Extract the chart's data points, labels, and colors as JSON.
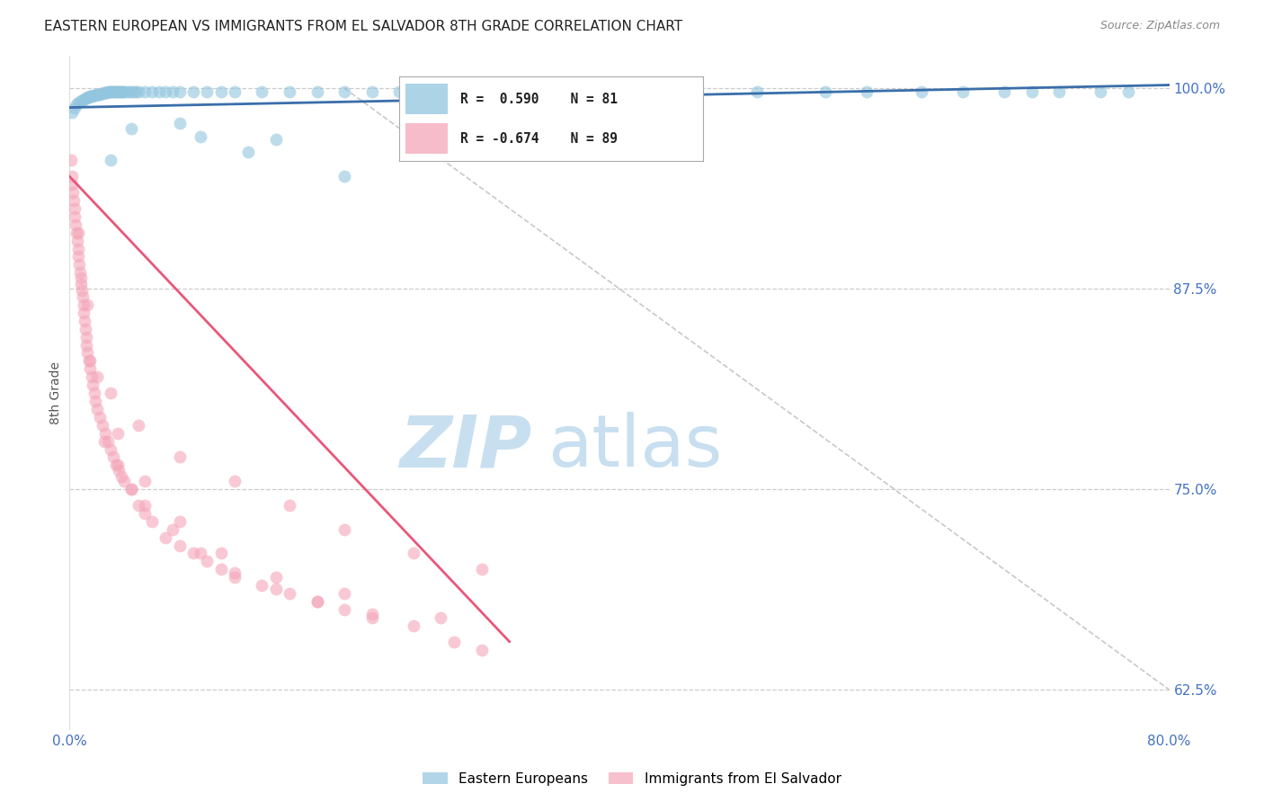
{
  "title": "EASTERN EUROPEAN VS IMMIGRANTS FROM EL SALVADOR 8TH GRADE CORRELATION CHART",
  "source": "Source: ZipAtlas.com",
  "ylabel": "8th Grade",
  "right_ytick_labels": [
    "100.0%",
    "87.5%",
    "75.0%",
    "62.5%"
  ],
  "right_yticks": [
    100.0,
    87.5,
    75.0,
    62.5
  ],
  "legend_blue_label": "Eastern Europeans",
  "legend_pink_label": "Immigrants from El Salvador",
  "legend_r_blue": "R =  0.590",
  "legend_n_blue": "N = 81",
  "legend_r_pink": "R = -0.674",
  "legend_n_pink": "N = 89",
  "blue_color": "#92c5de",
  "pink_color": "#f4a6b8",
  "blue_line_color": "#3a6eaa",
  "pink_line_color": "#e8577a",
  "diag_line_color": "#bbbbbb",
  "watermark_zip_color": "#c8dff0",
  "watermark_atlas_color": "#c8dff0",
  "blue_scatter_x": [
    0.2,
    0.4,
    0.5,
    0.6,
    0.8,
    1.0,
    1.1,
    1.2,
    1.3,
    1.4,
    1.5,
    1.6,
    1.7,
    1.8,
    1.9,
    2.0,
    2.1,
    2.2,
    2.3,
    2.4,
    2.5,
    2.6,
    2.7,
    2.8,
    2.9,
    3.0,
    3.1,
    3.2,
    3.3,
    3.4,
    3.5,
    3.6,
    3.7,
    3.8,
    3.9,
    4.0,
    4.2,
    4.4,
    4.6,
    4.8,
    5.0,
    5.5,
    6.0,
    6.5,
    7.0,
    7.5,
    8.0,
    9.0,
    10.0,
    11.0,
    12.0,
    14.0,
    16.0,
    18.0,
    20.0,
    22.0,
    24.0,
    26.0,
    30.0,
    35.0,
    40.0,
    45.0,
    50.0,
    55.0,
    58.0,
    62.0,
    65.0,
    68.0,
    70.0,
    72.0,
    75.0,
    77.0,
    4.5,
    9.5,
    15.0,
    25.0,
    3.0,
    8.0,
    13.0,
    20.0,
    30.0
  ],
  "blue_scatter_y": [
    98.5,
    98.8,
    99.0,
    99.1,
    99.2,
    99.3,
    99.35,
    99.4,
    99.42,
    99.45,
    99.5,
    99.52,
    99.54,
    99.56,
    99.58,
    99.6,
    99.62,
    99.64,
    99.66,
    99.68,
    99.7,
    99.72,
    99.74,
    99.76,
    99.78,
    99.8,
    99.8,
    99.8,
    99.8,
    99.8,
    99.8,
    99.8,
    99.8,
    99.8,
    99.8,
    99.8,
    99.8,
    99.8,
    99.8,
    99.8,
    99.8,
    99.8,
    99.8,
    99.8,
    99.8,
    99.8,
    99.8,
    99.8,
    99.8,
    99.8,
    99.8,
    99.8,
    99.8,
    99.8,
    99.8,
    99.8,
    99.8,
    99.8,
    99.8,
    99.8,
    99.8,
    99.8,
    99.8,
    99.8,
    99.8,
    99.8,
    99.8,
    99.8,
    99.8,
    99.8,
    99.8,
    99.8,
    97.5,
    97.0,
    96.8,
    98.2,
    95.5,
    97.8,
    96.0,
    94.5,
    97.2
  ],
  "pink_scatter_x": [
    0.1,
    0.15,
    0.2,
    0.25,
    0.3,
    0.35,
    0.4,
    0.45,
    0.5,
    0.55,
    0.6,
    0.65,
    0.7,
    0.75,
    0.8,
    0.85,
    0.9,
    0.95,
    1.0,
    1.05,
    1.1,
    1.15,
    1.2,
    1.25,
    1.3,
    1.4,
    1.5,
    1.6,
    1.7,
    1.8,
    1.9,
    2.0,
    2.2,
    2.4,
    2.6,
    2.8,
    3.0,
    3.2,
    3.4,
    3.6,
    3.8,
    4.0,
    4.5,
    5.0,
    5.5,
    6.0,
    7.0,
    8.0,
    9.0,
    10.0,
    11.0,
    12.0,
    14.0,
    16.0,
    18.0,
    20.0,
    22.0,
    25.0,
    28.0,
    30.0,
    2.5,
    3.5,
    4.5,
    5.5,
    7.5,
    9.5,
    12.0,
    15.0,
    18.0,
    22.0,
    1.5,
    3.0,
    5.0,
    8.0,
    12.0,
    16.0,
    20.0,
    25.0,
    30.0,
    0.6,
    1.3,
    2.0,
    3.5,
    5.5,
    8.0,
    11.0,
    15.0,
    20.0,
    27.0
  ],
  "pink_scatter_y": [
    95.5,
    94.5,
    94.0,
    93.5,
    93.0,
    92.5,
    92.0,
    91.5,
    91.0,
    90.5,
    90.0,
    89.5,
    89.0,
    88.5,
    88.2,
    87.8,
    87.4,
    87.0,
    86.5,
    86.0,
    85.5,
    85.0,
    84.5,
    84.0,
    83.5,
    83.0,
    82.5,
    82.0,
    81.5,
    81.0,
    80.5,
    80.0,
    79.5,
    79.0,
    78.5,
    78.0,
    77.5,
    77.0,
    76.5,
    76.2,
    75.8,
    75.5,
    75.0,
    74.0,
    73.5,
    73.0,
    72.0,
    71.5,
    71.0,
    70.5,
    70.0,
    69.5,
    69.0,
    68.5,
    68.0,
    67.5,
    67.0,
    66.5,
    65.5,
    65.0,
    78.0,
    76.5,
    75.0,
    74.0,
    72.5,
    71.0,
    69.8,
    68.8,
    68.0,
    67.2,
    83.0,
    81.0,
    79.0,
    77.0,
    75.5,
    74.0,
    72.5,
    71.0,
    70.0,
    91.0,
    86.5,
    82.0,
    78.5,
    75.5,
    73.0,
    71.0,
    69.5,
    68.5,
    67.0
  ],
  "xlim": [
    0,
    80
  ],
  "ylim": [
    60,
    102
  ],
  "blue_trend_x": [
    0,
    80
  ],
  "blue_trend_y": [
    98.8,
    100.2
  ],
  "pink_trend_x": [
    0,
    32
  ],
  "pink_trend_y": [
    94.5,
    65.5
  ],
  "diag_line_x": [
    20,
    80
  ],
  "diag_line_y": [
    100.0,
    62.5
  ]
}
